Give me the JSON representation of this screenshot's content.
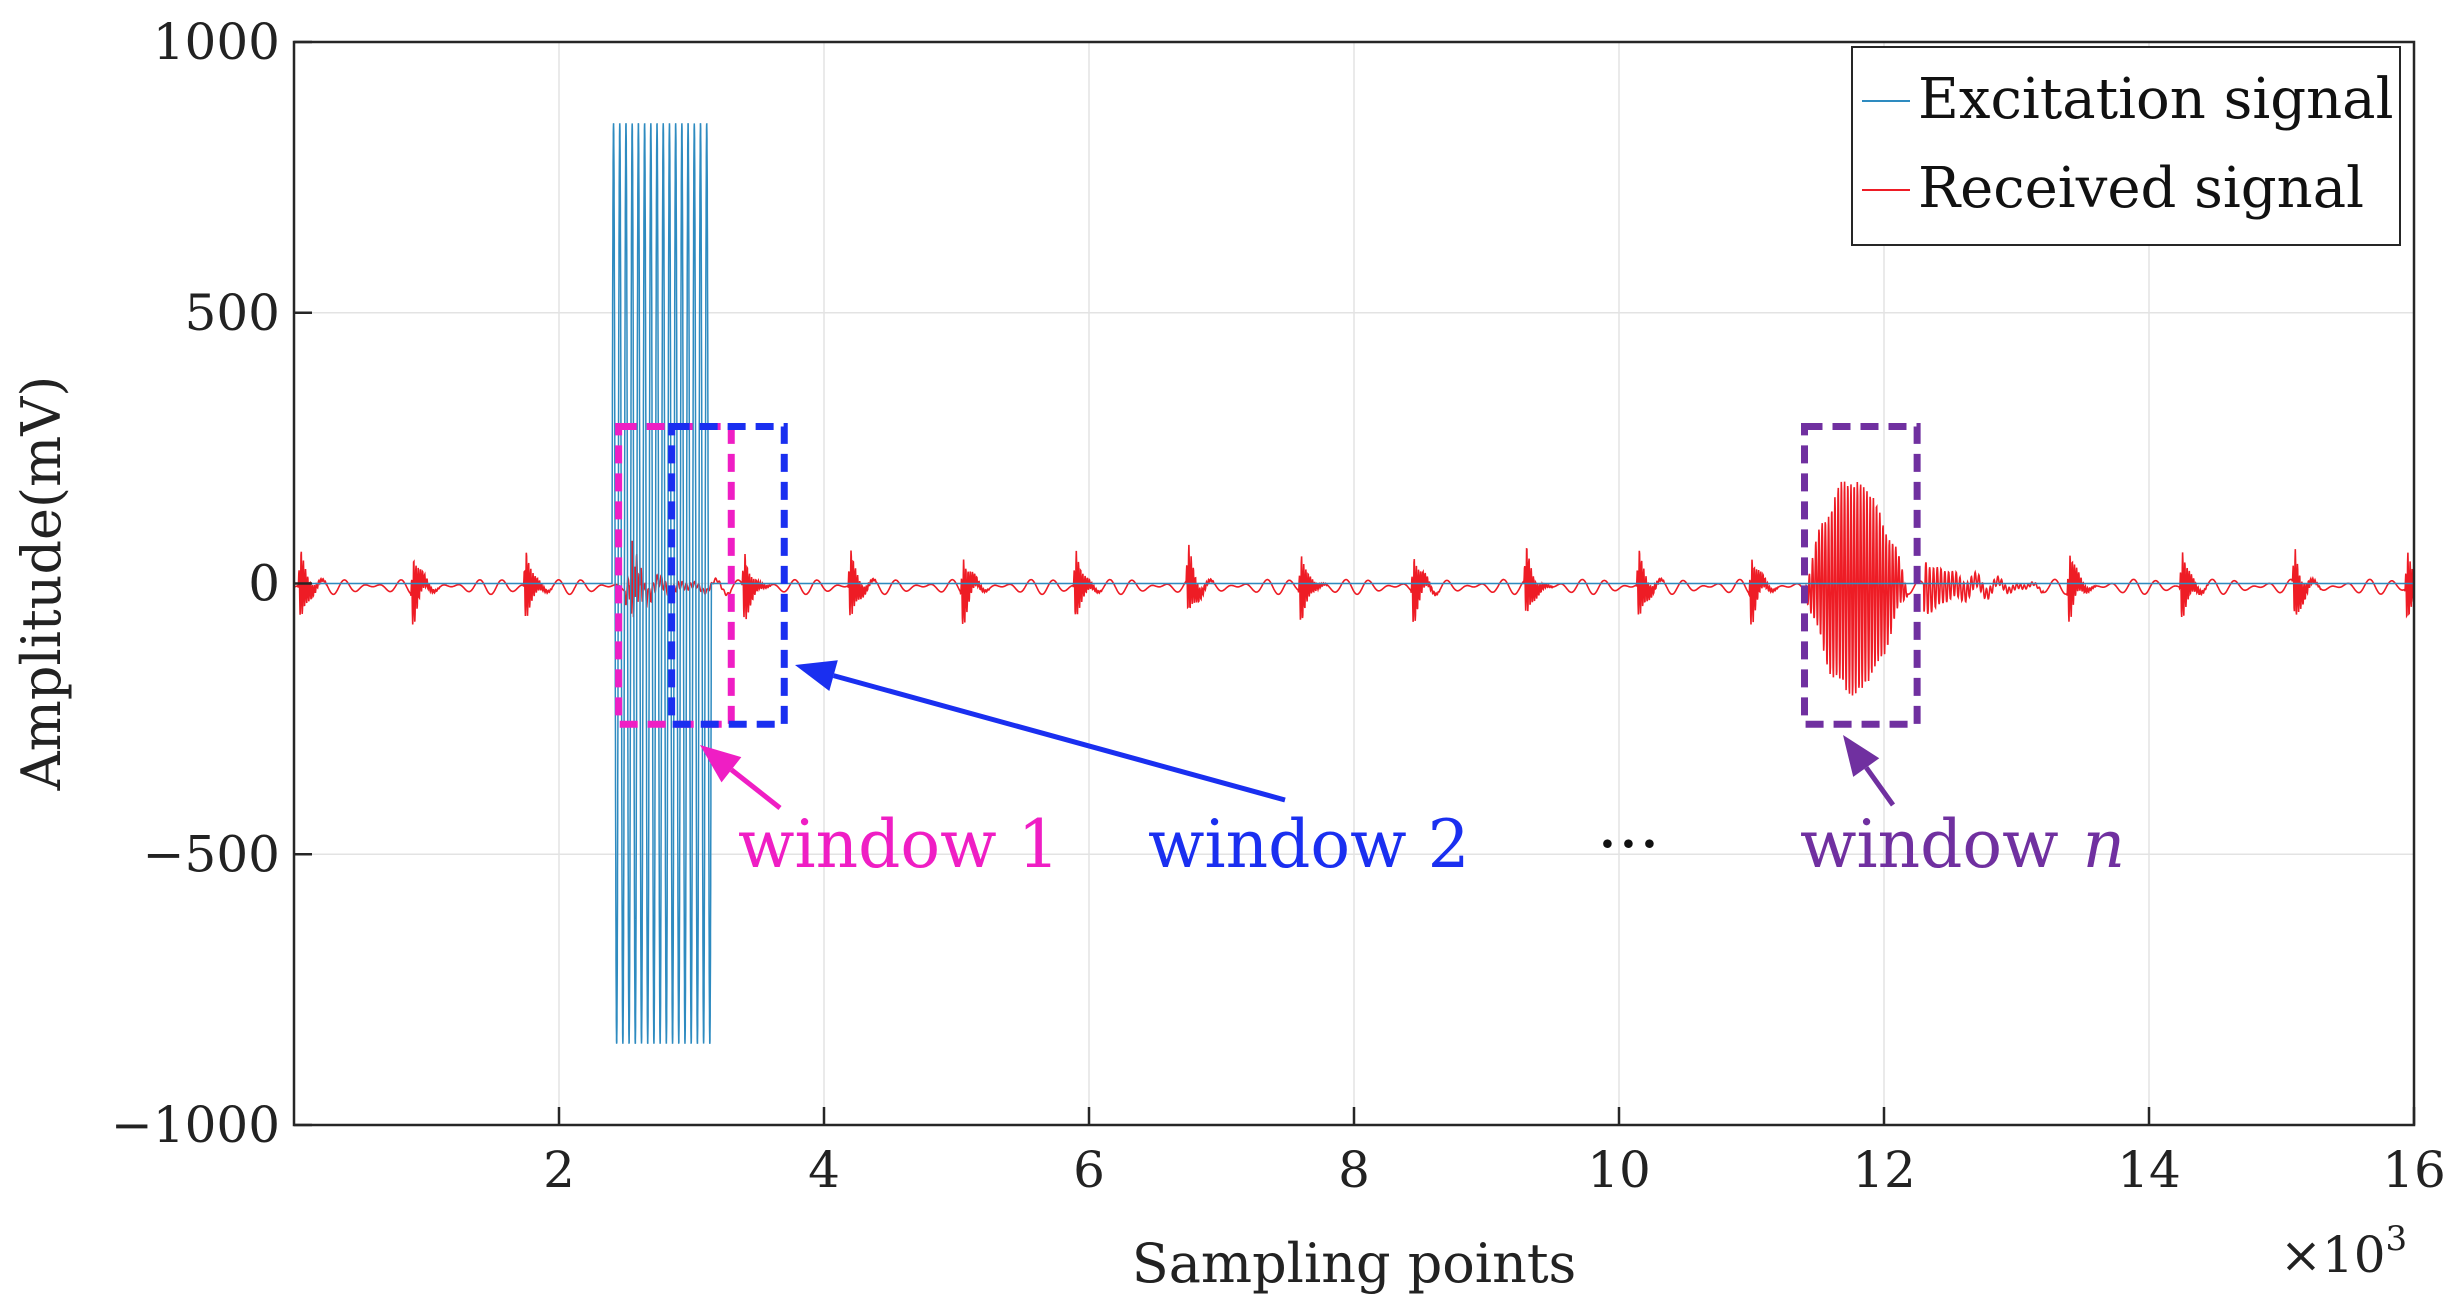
{
  "chart_data": {
    "type": "line",
    "title": "",
    "xlabel": "Sampling points",
    "ylabel": "Amplitude(mV)",
    "x_multiplier_label": "×10",
    "x_multiplier_exp": "3",
    "xlim": [
      0,
      16
    ],
    "ylim": [
      -1000,
      1000
    ],
    "x_ticks": [
      2,
      4,
      6,
      8,
      10,
      12,
      14,
      16
    ],
    "x_tick_labels": [
      "2",
      "4",
      "6",
      "8",
      "10",
      "12",
      "14",
      "16"
    ],
    "y_ticks": [
      1000,
      500,
      0,
      -500,
      -1000
    ],
    "y_tick_labels": [
      "1000",
      "500",
      "0",
      "−500",
      "−1000"
    ],
    "grid": true,
    "legend_position": "top-right",
    "series": [
      {
        "name": "Excitation signal",
        "color": "#2e8bc0",
        "burst": {
          "x_start": 2.4,
          "x_end": 3.15,
          "amplitude": 850,
          "cycles": 16
        }
      },
      {
        "name": "Received signal",
        "color": "#ee1c25",
        "pulse_centers": [
          0.05,
          0.9,
          1.75,
          2.55,
          3.4,
          4.2,
          5.05,
          5.9,
          6.75,
          7.6,
          8.45,
          9.3,
          10.15,
          11.0,
          13.4,
          14.25,
          15.1,
          15.95
        ],
        "pulse_amplitude": 70,
        "echo": {
          "x_start": 11.4,
          "x_end": 12.3,
          "amplitude": 230
        },
        "tail": {
          "x_start": 12.3,
          "x_end": 13.2,
          "amplitude": 50
        }
      }
    ],
    "annotations": [
      {
        "label": "window 1",
        "color": "#ef1ec4",
        "box_x": [
          2.45,
          3.3
        ],
        "box_y": [
          -260,
          290
        ],
        "italic_suffix": ""
      },
      {
        "label": "window 2",
        "color": "#1a2ff0",
        "box_x": [
          2.85,
          3.7
        ],
        "box_y": [
          -260,
          290
        ],
        "italic_suffix": ""
      },
      {
        "label": "window",
        "color": "#7030a0",
        "box_x": [
          11.4,
          12.25
        ],
        "box_y": [
          -260,
          290
        ],
        "italic_suffix": "n"
      }
    ],
    "ellipsis": "···"
  }
}
